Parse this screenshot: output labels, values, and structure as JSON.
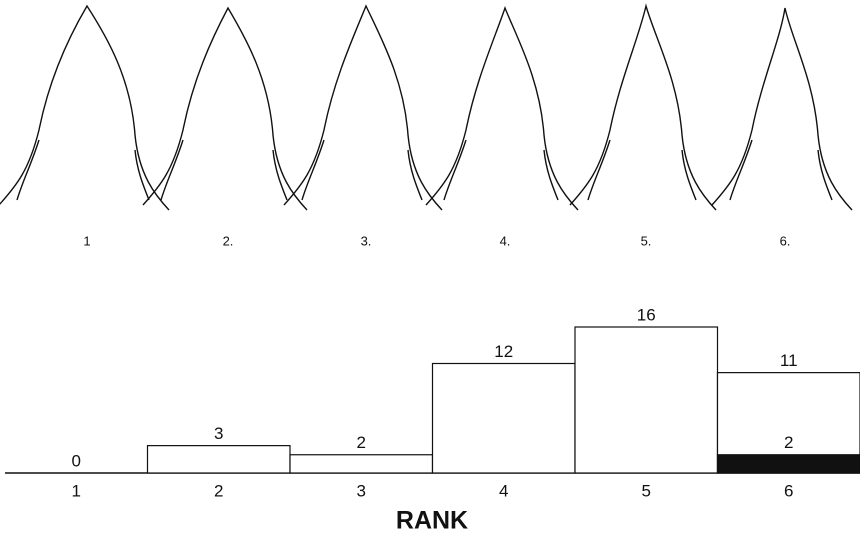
{
  "leaves": {
    "labels": [
      "1",
      "2.",
      "3.",
      "4.",
      "5.",
      "6."
    ]
  },
  "chart_data": {
    "type": "bar",
    "categories": [
      "1",
      "2",
      "3",
      "4",
      "5",
      "6"
    ],
    "series": [
      {
        "color": "#ffffff",
        "values": [
          0,
          3,
          2,
          12,
          16,
          11
        ]
      },
      {
        "color": "#111111",
        "values": [
          null,
          null,
          null,
          null,
          null,
          2
        ]
      }
    ],
    "xlabel": "RANK"
  }
}
